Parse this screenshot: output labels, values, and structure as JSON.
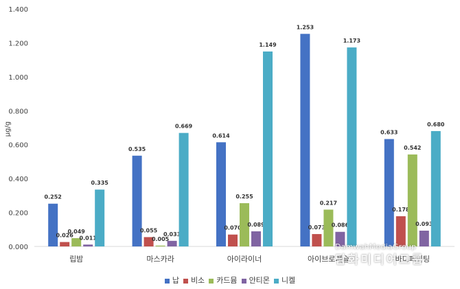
{
  "chart_data": {
    "type": "bar",
    "ylabel": "μg/g",
    "ylim": [
      0,
      1.4
    ],
    "yticks": [
      "0.000",
      "0.200",
      "0.400",
      "0.600",
      "0.800",
      "1.000",
      "1.200",
      "1.400"
    ],
    "grid": false,
    "legend_position": "bottom",
    "categories": [
      "립밤",
      "마스카라",
      "아이라이너",
      "아이브로페슬",
      "바디페인팅"
    ],
    "series": [
      {
        "name": "납",
        "color": "#4472C4",
        "values": [
          0.252,
          0.535,
          0.614,
          1.253,
          0.633
        ],
        "labels": [
          "0.252",
          "0.535",
          "0.614",
          "1.253",
          "0.633"
        ]
      },
      {
        "name": "비소",
        "color": "#C0504D",
        "values": [
          0.026,
          0.055,
          0.07,
          0.073,
          0.178
        ],
        "labels": [
          "0.026",
          "0.055",
          "0.070",
          "0.073",
          "0.178"
        ]
      },
      {
        "name": "카드뮴",
        "color": "#9BBB59",
        "values": [
          0.049,
          0.005,
          0.255,
          0.217,
          0.542
        ],
        "labels": [
          "0.049",
          "0.005",
          "0.255",
          "0.217",
          "0.542"
        ]
      },
      {
        "name": "안티몬",
        "color": "#8064A2",
        "values": [
          0.011,
          0.033,
          0.089,
          0.086,
          0.093
        ],
        "labels": [
          "0.011",
          "0.033",
          "0.089",
          "0.086",
          "0.093"
        ]
      },
      {
        "name": "니켈",
        "color": "#4BACC6",
        "values": [
          0.335,
          0.669,
          1.149,
          1.173,
          0.68
        ],
        "labels": [
          "0.335",
          "0.669",
          "1.149",
          "1.173",
          "0.680"
        ]
      }
    ]
  },
  "watermark": {
    "line1": "DamwahMediaGroup",
    "line2": "담화미디어그룹"
  }
}
